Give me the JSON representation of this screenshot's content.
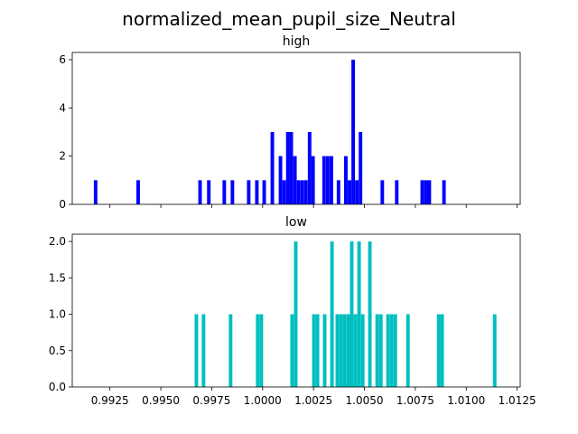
{
  "figure": {
    "title": "normalized_mean_pupil_size_Neutral"
  },
  "chart_data": [
    {
      "type": "bar",
      "title": "high",
      "color": "#0000ff",
      "xlim": [
        0.99065,
        1.01265
      ],
      "ylim": [
        0,
        6.3
      ],
      "yticks": [
        "0",
        "2",
        "4",
        "6"
      ],
      "ytick_values": [
        0,
        2,
        4,
        6
      ],
      "xtick_values": [
        0.9925,
        0.995,
        0.9975,
        1.0,
        1.0025,
        1.005,
        1.0075,
        1.01,
        1.0125
      ],
      "xticks_labeled": false,
      "bin_width": 0.000174,
      "bins": [
        {
          "x": 0.99171,
          "count": 1
        },
        {
          "x": 0.9938,
          "count": 1
        },
        {
          "x": 0.99684,
          "count": 1
        },
        {
          "x": 0.99727,
          "count": 1
        },
        {
          "x": 0.99803,
          "count": 1
        },
        {
          "x": 0.99843,
          "count": 1
        },
        {
          "x": 0.99923,
          "count": 1
        },
        {
          "x": 0.99963,
          "count": 1
        },
        {
          "x": 0.99999,
          "count": 1
        },
        {
          "x": 1.00039,
          "count": 3
        },
        {
          "x": 1.00079,
          "count": 2
        },
        {
          "x": 1.00097,
          "count": 1
        },
        {
          "x": 1.00115,
          "count": 3
        },
        {
          "x": 1.00132,
          "count": 3
        },
        {
          "x": 1.0015,
          "count": 2
        },
        {
          "x": 1.00168,
          "count": 1
        },
        {
          "x": 1.00186,
          "count": 1
        },
        {
          "x": 1.00204,
          "count": 1
        },
        {
          "x": 1.00222,
          "count": 3
        },
        {
          "x": 1.00239,
          "count": 2
        },
        {
          "x": 1.00293,
          "count": 2
        },
        {
          "x": 1.00311,
          "count": 2
        },
        {
          "x": 1.00329,
          "count": 2
        },
        {
          "x": 1.00364,
          "count": 1
        },
        {
          "x": 1.004,
          "count": 2
        },
        {
          "x": 1.00418,
          "count": 1
        },
        {
          "x": 1.00436,
          "count": 6
        },
        {
          "x": 1.00454,
          "count": 1
        },
        {
          "x": 1.00472,
          "count": 3
        },
        {
          "x": 1.00579,
          "count": 1
        },
        {
          "x": 1.0065,
          "count": 1
        },
        {
          "x": 1.00775,
          "count": 1
        },
        {
          "x": 1.00793,
          "count": 1
        },
        {
          "x": 1.0081,
          "count": 1
        },
        {
          "x": 1.00882,
          "count": 1
        }
      ]
    },
    {
      "type": "bar",
      "title": "low",
      "color": "#00bfbf",
      "xlim": [
        0.99065,
        1.01265
      ],
      "ylim": [
        0,
        2.1
      ],
      "yticks": [
        "0.0",
        "0.5",
        "1.0",
        "1.5",
        "2.0"
      ],
      "ytick_values": [
        0,
        0.5,
        1.0,
        1.5,
        2.0
      ],
      "xticks": [
        "0.9925",
        "0.9950",
        "0.9975",
        "1.0000",
        "1.0025",
        "1.0050",
        "1.0075",
        "1.0100",
        "1.0125"
      ],
      "xtick_values": [
        0.9925,
        0.995,
        0.9975,
        1.0,
        1.0025,
        1.005,
        1.0075,
        1.01,
        1.0125
      ],
      "xticks_labeled": true,
      "bin_width": 0.000174,
      "bins": [
        {
          "x": 0.99666,
          "count": 1
        },
        {
          "x": 0.99701,
          "count": 1
        },
        {
          "x": 0.99834,
          "count": 1
        },
        {
          "x": 0.99967,
          "count": 1
        },
        {
          "x": 0.99985,
          "count": 1
        },
        {
          "x": 1.00136,
          "count": 1
        },
        {
          "x": 1.00154,
          "count": 2
        },
        {
          "x": 1.00243,
          "count": 1
        },
        {
          "x": 1.00261,
          "count": 1
        },
        {
          "x": 1.00296,
          "count": 1
        },
        {
          "x": 1.00332,
          "count": 2
        },
        {
          "x": 1.00358,
          "count": 1
        },
        {
          "x": 1.00376,
          "count": 1
        },
        {
          "x": 1.00394,
          "count": 1
        },
        {
          "x": 1.00412,
          "count": 1
        },
        {
          "x": 1.00429,
          "count": 2
        },
        {
          "x": 1.00447,
          "count": 1
        },
        {
          "x": 1.00465,
          "count": 2
        },
        {
          "x": 1.00483,
          "count": 1
        },
        {
          "x": 1.00518,
          "count": 2
        },
        {
          "x": 1.00554,
          "count": 1
        },
        {
          "x": 1.00572,
          "count": 1
        },
        {
          "x": 1.00607,
          "count": 1
        },
        {
          "x": 1.00625,
          "count": 1
        },
        {
          "x": 1.00643,
          "count": 1
        },
        {
          "x": 1.00705,
          "count": 1
        },
        {
          "x": 1.00856,
          "count": 1
        },
        {
          "x": 1.00873,
          "count": 1
        },
        {
          "x": 1.01131,
          "count": 1
        }
      ]
    }
  ]
}
